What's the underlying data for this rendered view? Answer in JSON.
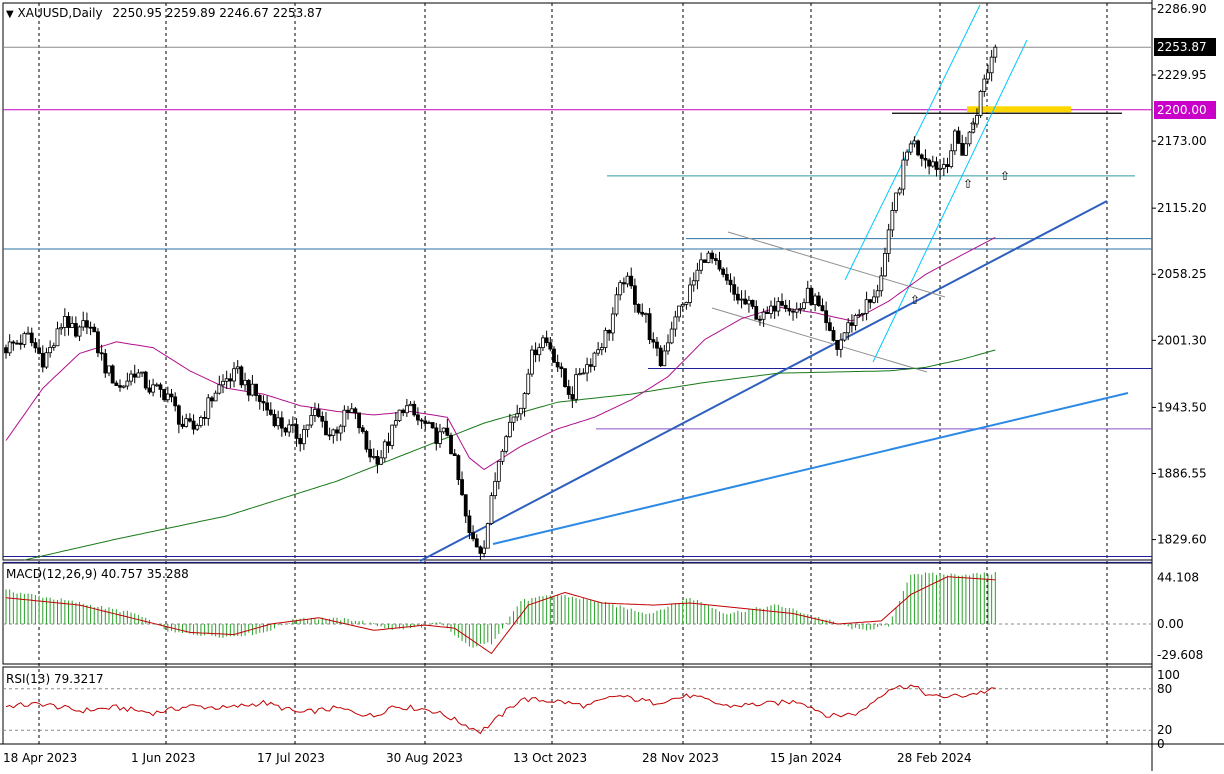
{
  "header": {
    "symbol": "XAUUSD,Daily",
    "ohlc": "2250.95 2259.89 2246.67 2253.87"
  },
  "colors": {
    "background": "#ffffff",
    "candle": "#000000",
    "ma_short": "#b0108c",
    "ma_long": "#1a7a1a",
    "channel": "#00c8ff",
    "trend_main": "#2e5fbf",
    "trend_long": "#2a8ae6",
    "h_level_dark": "#1e1e96",
    "h_level_teal": "#2e9aa0",
    "h_level_purple": "#8a4fc8",
    "h_level_magenta": "#c800c8",
    "zone_gold": "#ffd700",
    "macd_hist": "#2aa02a",
    "macd_signal": "#c00000",
    "rsi_line": "#c00000",
    "arrow": "#8ab4e0"
  },
  "chart_data": [
    {
      "type": "candlestick",
      "title": "XAUUSD,Daily",
      "x_labels": [
        "18 Apr 2023",
        "1 Jun 2023",
        "17 Jul 2023",
        "30 Aug 2023",
        "13 Oct 2023",
        "28 Nov 2023",
        "15 Jan 2024",
        "28 Feb 2024"
      ],
      "y_tick_labels": [
        "2286.90",
        "2229.95",
        "2173.00",
        "2115.20",
        "2058.25",
        "2001.30",
        "1943.50",
        "1886.55",
        "1829.60"
      ],
      "y_ticks": [
        2286.9,
        2229.95,
        2173.0,
        2115.2,
        2058.25,
        2001.3,
        1943.5,
        1886.55,
        1829.6
      ],
      "ylim": [
        1812,
        2292
      ],
      "last_price": 2253.87,
      "last_price_label": "2253.87",
      "level_label": "2200.00",
      "levels": [
        2253.87,
        2200.0,
        2143.0,
        2089.0,
        2080.0,
        1977.0,
        1925.0,
        1815.0,
        1810.0
      ],
      "price_path": [
        [
          0,
          1995
        ],
        [
          6,
          2004
        ],
        [
          10,
          1985
        ],
        [
          13,
          1998
        ],
        [
          16,
          2023
        ],
        [
          19,
          2002
        ],
        [
          22,
          2019
        ],
        [
          27,
          1978
        ],
        [
          31,
          1960
        ],
        [
          35,
          1975
        ],
        [
          39,
          1960
        ],
        [
          44,
          1955
        ],
        [
          48,
          1928
        ],
        [
          51,
          1925
        ],
        [
          54,
          1940
        ],
        [
          57,
          1958
        ],
        [
          60,
          1968
        ],
        [
          63,
          1972
        ],
        [
          66,
          1960
        ],
        [
          69,
          1950
        ],
        [
          72,
          1938
        ],
        [
          75,
          1928
        ],
        [
          78,
          1922
        ],
        [
          80,
          1918
        ],
        [
          82,
          1930
        ],
        [
          84,
          1938
        ],
        [
          86,
          1930
        ],
        [
          88,
          1920
        ],
        [
          90,
          1926
        ],
        [
          92,
          1935
        ],
        [
          94,
          1940
        ],
        [
          96,
          1928
        ],
        [
          98,
          1908
        ],
        [
          100,
          1900
        ],
        [
          102,
          1902
        ],
        [
          104,
          1915
        ],
        [
          106,
          1930
        ],
        [
          108,
          1945
        ],
        [
          110,
          1940
        ],
        [
          112,
          1932
        ],
        [
          114,
          1928
        ],
        [
          116,
          1920
        ],
        [
          118,
          1918
        ],
        [
          120,
          1922
        ],
        [
          122,
          1895
        ],
        [
          124,
          1865
        ],
        [
          126,
          1832
        ],
        [
          128,
          1826
        ],
        [
          129,
          1822
        ],
        [
          130,
          1828
        ],
        [
          132,
          1862
        ],
        [
          134,
          1900
        ],
        [
          136,
          1925
        ],
        [
          138,
          1935
        ],
        [
          140,
          1945
        ],
        [
          142,
          1978
        ],
        [
          144,
          1995
        ],
        [
          146,
          2003
        ],
        [
          148,
          1996
        ],
        [
          150,
          1980
        ],
        [
          152,
          1962
        ],
        [
          154,
          1955
        ],
        [
          156,
          1975
        ],
        [
          158,
          1980
        ],
        [
          160,
          1990
        ],
        [
          162,
          2000
        ],
        [
          164,
          2012
        ],
        [
          166,
          2035
        ],
        [
          168,
          2055
        ],
        [
          170,
          2045
        ],
        [
          172,
          2030
        ],
        [
          174,
          2020
        ],
        [
          176,
          1995
        ],
        [
          178,
          1982
        ],
        [
          180,
          2003
        ],
        [
          182,
          2025
        ],
        [
          184,
          2030
        ],
        [
          186,
          2045
        ],
        [
          188,
          2060
        ],
        [
          190,
          2075
        ],
        [
          192,
          2070
        ],
        [
          194,
          2058
        ],
        [
          196,
          2050
        ],
        [
          198,
          2040
        ],
        [
          200,
          2035
        ],
        [
          202,
          2030
        ],
        [
          204,
          2025
        ],
        [
          206,
          2020
        ],
        [
          208,
          2025
        ],
        [
          210,
          2040
        ],
        [
          212,
          2035
        ],
        [
          214,
          2025
        ],
        [
          216,
          2030
        ],
        [
          218,
          2040
        ],
        [
          220,
          2035
        ],
        [
          222,
          2020
        ],
        [
          224,
          2005
        ],
        [
          226,
          1995
        ],
        [
          228,
          2008
        ],
        [
          230,
          2018
        ],
        [
          232,
          2025
        ],
        [
          234,
          2032
        ],
        [
          236,
          2035
        ],
        [
          238,
          2060
        ],
        [
          240,
          2090
        ],
        [
          242,
          2125
        ],
        [
          244,
          2150
        ],
        [
          246,
          2175
        ],
        [
          248,
          2165
        ],
        [
          250,
          2160
        ],
        [
          252,
          2155
        ],
        [
          254,
          2150
        ],
        [
          256,
          2158
        ],
        [
          258,
          2175
        ],
        [
          260,
          2165
        ],
        [
          262,
          2178
        ],
        [
          264,
          2200
        ],
        [
          266,
          2225
        ],
        [
          268,
          2245
        ],
        [
          269,
          2253.87
        ]
      ],
      "ma_short": [
        [
          0,
          1915
        ],
        [
          10,
          1960
        ],
        [
          20,
          1990
        ],
        [
          30,
          2000
        ],
        [
          40,
          1995
        ],
        [
          50,
          1975
        ],
        [
          60,
          1960
        ],
        [
          70,
          1955
        ],
        [
          80,
          1945
        ],
        [
          90,
          1940
        ],
        [
          100,
          1937
        ],
        [
          110,
          1940
        ],
        [
          120,
          1935
        ],
        [
          126,
          1900
        ],
        [
          130,
          1890
        ],
        [
          140,
          1910
        ],
        [
          150,
          1925
        ],
        [
          160,
          1935
        ],
        [
          170,
          1950
        ],
        [
          180,
          1970
        ],
        [
          190,
          2002
        ],
        [
          200,
          2020
        ],
        [
          210,
          2030
        ],
        [
          220,
          2025
        ],
        [
          230,
          2018
        ],
        [
          240,
          2035
        ],
        [
          250,
          2058
        ],
        [
          260,
          2075
        ],
        [
          269,
          2090
        ]
      ],
      "ma_long": [
        [
          5,
          1812
        ],
        [
          30,
          1830
        ],
        [
          60,
          1850
        ],
        [
          90,
          1880
        ],
        [
          110,
          1905
        ],
        [
          130,
          1930
        ],
        [
          150,
          1948
        ],
        [
          170,
          1955
        ],
        [
          190,
          1965
        ],
        [
          210,
          1973
        ],
        [
          240,
          1975
        ],
        [
          250,
          1978
        ],
        [
          260,
          1985
        ],
        [
          269,
          1993
        ]
      ]
    },
    {
      "type": "bar",
      "title": "MACD(12,26,9) 40.757 35.288",
      "y_tick_labels": [
        "44.108",
        "0.00",
        "-29.608"
      ],
      "y_ticks": [
        44.108,
        0.0,
        -29.608
      ],
      "ylim": [
        -38,
        58
      ],
      "histogram": [
        [
          0,
          32
        ],
        [
          20,
          20
        ],
        [
          35,
          10
        ],
        [
          45,
          -8
        ],
        [
          60,
          -12
        ],
        [
          70,
          -8
        ],
        [
          80,
          6
        ],
        [
          95,
          4
        ],
        [
          105,
          -5
        ],
        [
          110,
          -4
        ],
        [
          118,
          1
        ],
        [
          126,
          -22
        ],
        [
          132,
          -18
        ],
        [
          140,
          22
        ],
        [
          150,
          28
        ],
        [
          160,
          22
        ],
        [
          175,
          10
        ],
        [
          186,
          25
        ],
        [
          196,
          10
        ],
        [
          210,
          18
        ],
        [
          222,
          5
        ],
        [
          232,
          -6
        ],
        [
          240,
          -2
        ],
        [
          246,
          48
        ],
        [
          258,
          47
        ],
        [
          269,
          48
        ]
      ],
      "signal": [
        [
          0,
          25
        ],
        [
          20,
          18
        ],
        [
          35,
          5
        ],
        [
          50,
          -8
        ],
        [
          62,
          -10
        ],
        [
          72,
          0
        ],
        [
          85,
          6
        ],
        [
          100,
          -6
        ],
        [
          114,
          -1
        ],
        [
          122,
          -4
        ],
        [
          132,
          -28
        ],
        [
          142,
          18
        ],
        [
          152,
          30
        ],
        [
          162,
          20
        ],
        [
          176,
          18
        ],
        [
          186,
          20
        ],
        [
          200,
          15
        ],
        [
          214,
          10
        ],
        [
          226,
          0
        ],
        [
          238,
          3
        ],
        [
          246,
          28
        ],
        [
          256,
          45
        ],
        [
          269,
          42
        ]
      ]
    },
    {
      "type": "line",
      "title": "RSI(13) 79.3217",
      "y_tick_labels": [
        "100",
        "80",
        "20",
        "0"
      ],
      "y_ticks": [
        100,
        80,
        20,
        0
      ],
      "ylim": [
        0,
        100
      ],
      "rsi": [
        [
          0,
          55
        ],
        [
          10,
          58
        ],
        [
          20,
          48
        ],
        [
          30,
          53
        ],
        [
          40,
          45
        ],
        [
          50,
          55
        ],
        [
          60,
          52
        ],
        [
          70,
          60
        ],
        [
          80,
          45
        ],
        [
          90,
          52
        ],
        [
          100,
          40
        ],
        [
          105,
          55
        ],
        [
          115,
          50
        ],
        [
          120,
          40
        ],
        [
          126,
          25
        ],
        [
          129,
          18
        ],
        [
          132,
          30
        ],
        [
          140,
          65
        ],
        [
          150,
          62
        ],
        [
          158,
          55
        ],
        [
          166,
          70
        ],
        [
          176,
          60
        ],
        [
          186,
          70
        ],
        [
          196,
          55
        ],
        [
          206,
          58
        ],
        [
          216,
          62
        ],
        [
          224,
          40
        ],
        [
          232,
          45
        ],
        [
          240,
          80
        ],
        [
          246,
          85
        ],
        [
          252,
          68
        ],
        [
          260,
          70
        ],
        [
          269,
          79
        ]
      ]
    }
  ]
}
